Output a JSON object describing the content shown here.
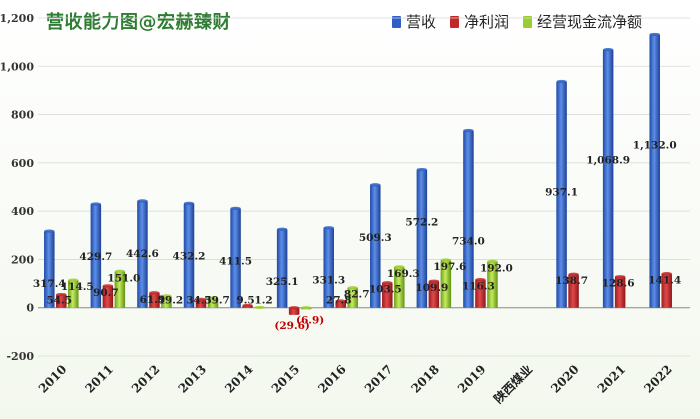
{
  "chart_data": {
    "type": "bar",
    "title": "营收能力图@宏赫臻财",
    "categories": [
      "2010",
      "2011",
      "2012",
      "2013",
      "2014",
      "2015",
      "2016",
      "2017",
      "2018",
      "2019",
      "陕西煤业",
      "2020",
      "2021",
      "2022"
    ],
    "series": [
      {
        "name": "营收",
        "color": "#2f5fc4",
        "values": [
          317.4,
          429.7,
          442.6,
          432.2,
          411.5,
          325.1,
          331.3,
          509.3,
          572.2,
          734.0,
          null,
          937.1,
          1068.9,
          1132.0
        ],
        "labels": [
          "317.4",
          "429.7",
          "442.6",
          "432.2",
          "411.5",
          "325.1",
          "331.3",
          "509.3",
          "572.2",
          "734.0",
          "",
          "937.1",
          "1,068.9",
          "1,132.0"
        ]
      },
      {
        "name": "净利润",
        "color": "#c0282a",
        "values": [
          54.5,
          90.7,
          61.9,
          34.5,
          9.5,
          -29.6,
          27.8,
          103.5,
          109.9,
          116.3,
          null,
          138.7,
          128.6,
          141.4
        ],
        "labels": [
          "54.5",
          "90.7",
          "61.9",
          "34.5",
          "9.5",
          "(29.6)",
          "27.8",
          "103.5",
          "109.9",
          "116.3",
          "",
          "138.7",
          "128.6",
          "141.4"
        ]
      },
      {
        "name": "经营现金流净额",
        "color": "#9acd32",
        "values": [
          114.5,
          151.0,
          49.2,
          39.7,
          1.2,
          -6.9,
          82.7,
          169.3,
          197.6,
          192.0,
          null,
          null,
          null,
          null
        ],
        "labels": [
          "114.5",
          "151.0",
          "49.2",
          "39.7",
          "1.2",
          "(6.9)",
          "82.7",
          "169.3",
          "197.6",
          "192.0",
          "",
          "",
          "",
          ""
        ]
      }
    ],
    "ylim": [
      -200,
      1200
    ],
    "yticks": [
      "-200",
      "0",
      "200",
      "400",
      "600",
      "800",
      "1,000",
      "1,200"
    ],
    "ytick_values": [
      -200,
      0,
      200,
      400,
      600,
      800,
      1000,
      1200
    ],
    "grid": true,
    "legend_position": "top-right"
  }
}
